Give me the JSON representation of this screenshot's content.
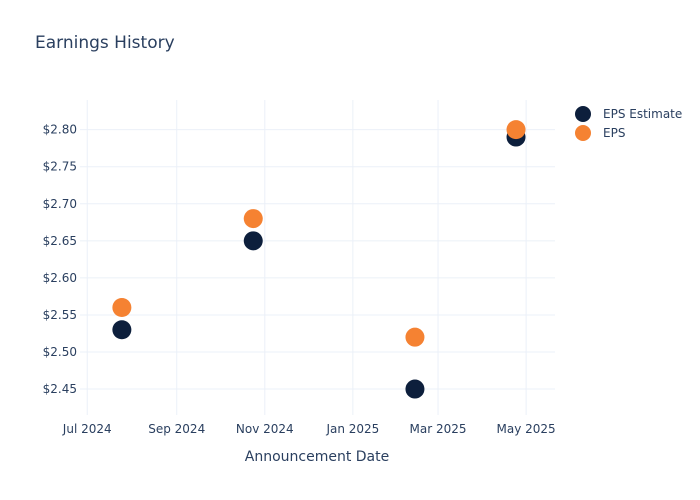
{
  "chart_data": {
    "type": "scatter",
    "title": "Earnings History",
    "xlabel": "Announcement Date",
    "ylabel": "",
    "x_ticks": [
      "Jul 2024",
      "Sep 2024",
      "Nov 2024",
      "Jan 2025",
      "Mar 2025",
      "May 2025"
    ],
    "y_ticks": [
      "$2.45",
      "$2.50",
      "$2.55",
      "$2.60",
      "$2.65",
      "$2.70",
      "$2.75",
      "$2.80"
    ],
    "ylim": [
      2.415,
      2.84
    ],
    "xlim": [
      "2024-06-26",
      "2025-05-21"
    ],
    "grid": true,
    "legend_position": "top-right",
    "series": [
      {
        "name": "EPS Estimate",
        "color": "#0d1f3c",
        "points": [
          {
            "x": "2024-07-25",
            "y": 2.53
          },
          {
            "x": "2024-10-24",
            "y": 2.65
          },
          {
            "x": "2025-02-13",
            "y": 2.45
          },
          {
            "x": "2025-04-24",
            "y": 2.79
          }
        ]
      },
      {
        "name": "EPS",
        "color": "#f58232",
        "points": [
          {
            "x": "2024-07-25",
            "y": 2.56
          },
          {
            "x": "2024-10-24",
            "y": 2.68
          },
          {
            "x": "2025-02-13",
            "y": 2.52
          },
          {
            "x": "2025-04-24",
            "y": 2.8
          }
        ]
      }
    ]
  }
}
